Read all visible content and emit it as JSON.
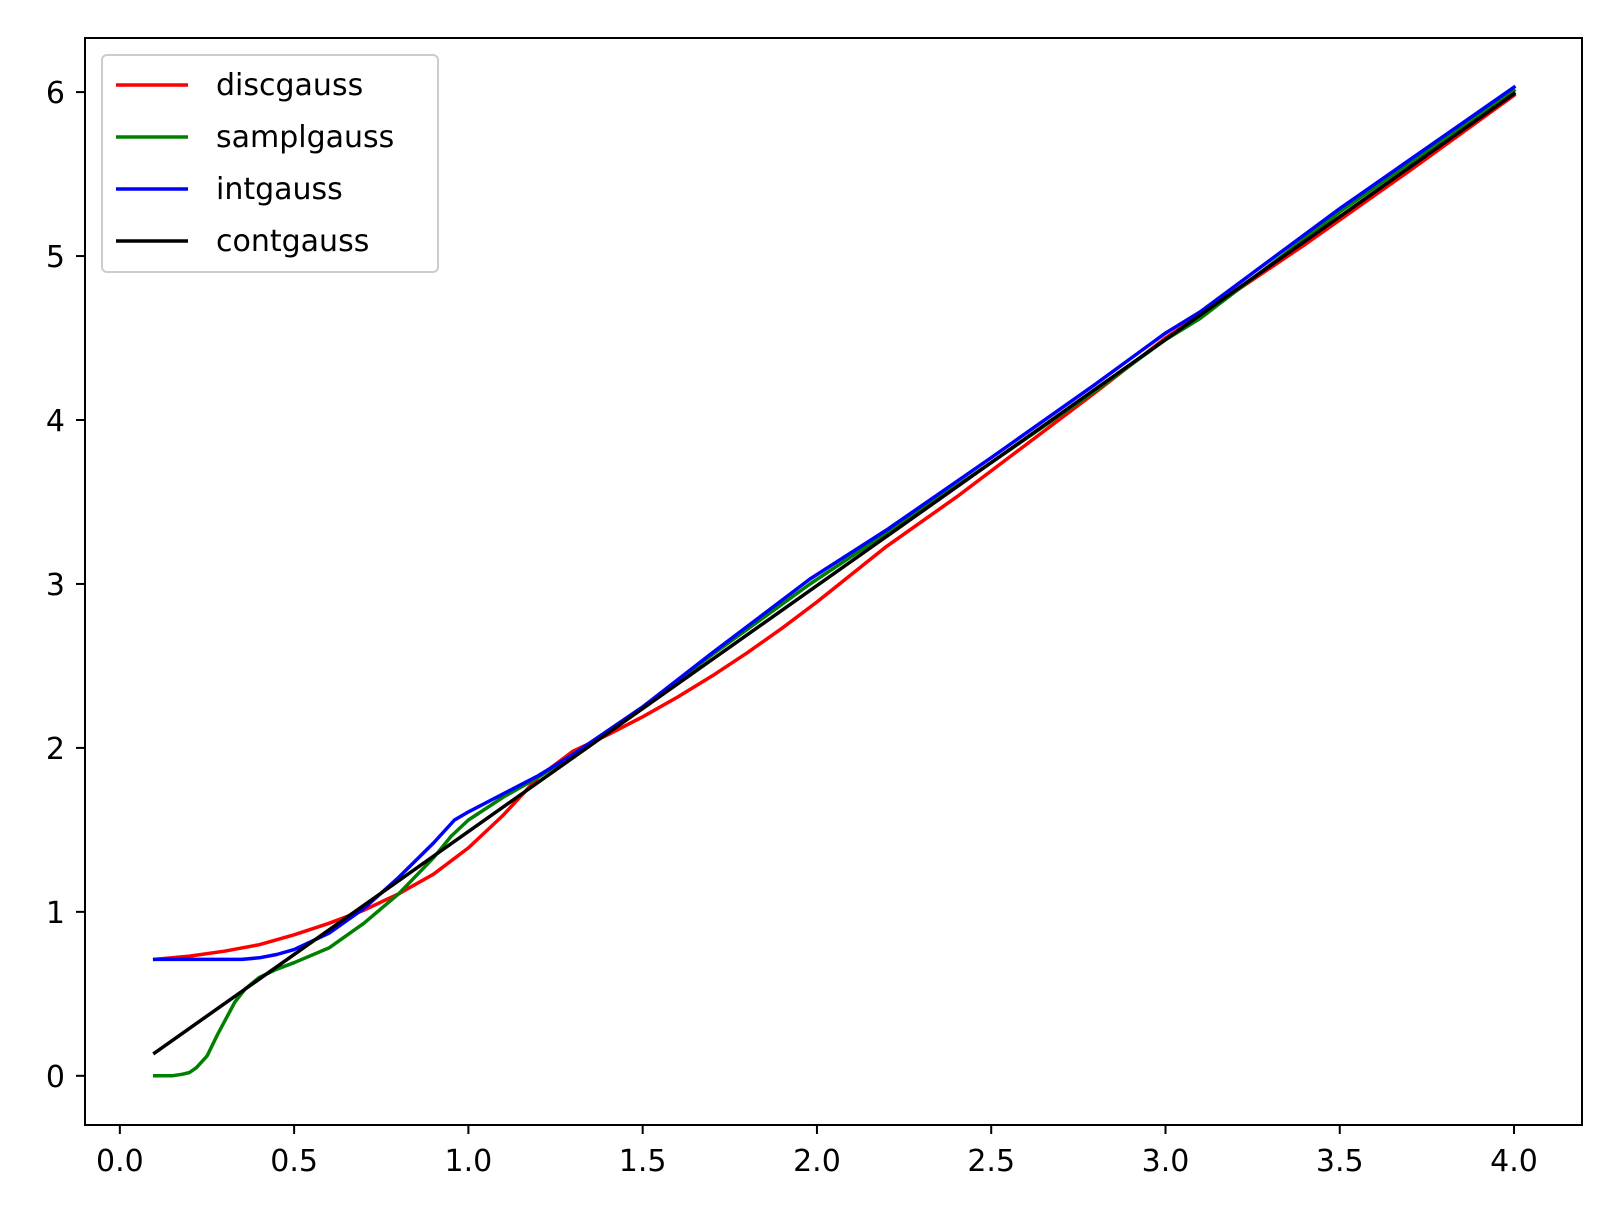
{
  "chart_data": {
    "type": "line",
    "title": "",
    "xlabel": "",
    "ylabel": "",
    "xlim": [
      -0.1,
      4.195
    ],
    "ylim": [
      -0.3,
      6.33
    ],
    "xticks": [
      0.0,
      0.5,
      1.0,
      1.5,
      2.0,
      2.5,
      3.0,
      3.5,
      4.0
    ],
    "xtick_labels": [
      "0.0",
      "0.5",
      "1.0",
      "1.5",
      "2.0",
      "2.5",
      "3.0",
      "3.5",
      "4.0"
    ],
    "yticks": [
      0,
      1,
      2,
      3,
      4,
      5,
      6
    ],
    "ytick_labels": [
      "0",
      "1",
      "2",
      "3",
      "4",
      "5",
      "6"
    ],
    "grid": false,
    "legend_position": "top-left",
    "series": [
      {
        "name": "discgauss",
        "color": "#ff0000",
        "x": [
          0.1,
          0.2,
          0.3,
          0.4,
          0.5,
          0.6,
          0.7,
          0.8,
          0.9,
          1.0,
          1.1,
          1.2,
          1.3,
          1.4,
          1.5,
          1.6,
          1.7,
          1.8,
          1.9,
          2.0,
          2.1,
          2.2,
          2.4,
          2.6,
          2.8,
          3.0,
          3.1,
          3.4,
          3.7,
          4.0
        ],
        "y": [
          0.71,
          0.73,
          0.76,
          0.8,
          0.86,
          0.93,
          1.01,
          1.11,
          1.23,
          1.39,
          1.59,
          1.82,
          1.98,
          2.08,
          2.19,
          2.31,
          2.44,
          2.58,
          2.73,
          2.89,
          3.06,
          3.23,
          3.53,
          3.85,
          4.17,
          4.5,
          4.64,
          5.07,
          5.52,
          5.98
        ]
      },
      {
        "name": "samplgauss",
        "color": "#008000",
        "x": [
          0.1,
          0.15,
          0.18,
          0.2,
          0.22,
          0.25,
          0.28,
          0.3,
          0.33,
          0.36,
          0.4,
          0.45,
          0.5,
          0.6,
          0.7,
          0.8,
          0.9,
          0.95,
          1.0,
          1.1,
          1.2,
          1.3,
          1.5,
          1.7,
          1.98,
          2.2,
          2.5,
          2.8,
          3.0,
          3.1,
          3.5,
          4.0
        ],
        "y": [
          0.0,
          0.0,
          0.01,
          0.02,
          0.05,
          0.12,
          0.25,
          0.33,
          0.45,
          0.53,
          0.6,
          0.65,
          0.69,
          0.78,
          0.93,
          1.11,
          1.33,
          1.46,
          1.56,
          1.7,
          1.82,
          1.96,
          2.25,
          2.57,
          3.0,
          3.31,
          3.74,
          4.18,
          4.49,
          4.62,
          5.27,
          6.01
        ]
      },
      {
        "name": "intgauss",
        "color": "#0000ff",
        "x": [
          0.1,
          0.2,
          0.3,
          0.35,
          0.4,
          0.45,
          0.5,
          0.6,
          0.7,
          0.8,
          0.9,
          0.96,
          1.0,
          1.1,
          1.2,
          1.3,
          1.5,
          1.7,
          1.98,
          2.2,
          2.5,
          2.8,
          3.0,
          3.1,
          3.5,
          4.0
        ],
        "y": [
          0.71,
          0.71,
          0.71,
          0.71,
          0.72,
          0.74,
          0.77,
          0.87,
          1.02,
          1.21,
          1.42,
          1.56,
          1.61,
          1.72,
          1.83,
          1.96,
          2.25,
          2.58,
          3.03,
          3.33,
          3.77,
          4.22,
          4.53,
          4.66,
          5.29,
          6.03
        ]
      },
      {
        "name": "contgauss",
        "color": "#000000",
        "x": [
          0.1,
          4.0
        ],
        "y": [
          0.14,
          5.99
        ]
      }
    ]
  }
}
